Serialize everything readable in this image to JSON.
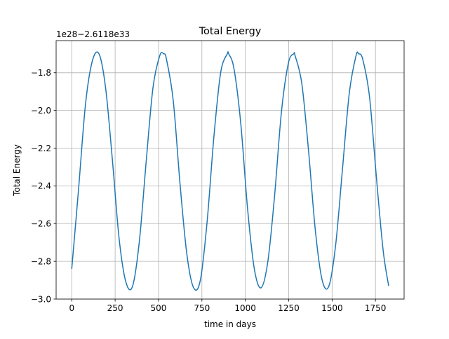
{
  "chart_data": {
    "type": "line",
    "title": "Total Energy",
    "xlabel": "time in days",
    "ylabel": "Total Energy",
    "offset_label": "1e28−2.6118e33",
    "xlim": [
      -90,
      1915
    ],
    "ylim": [
      -3.0,
      -1.63
    ],
    "xticks": [
      0,
      250,
      500,
      750,
      1000,
      1250,
      1500,
      1750
    ],
    "xtick_labels": [
      "0",
      "250",
      "500",
      "750",
      "1000",
      "1250",
      "1500",
      "1750"
    ],
    "yticks": [
      -3.0,
      -2.8,
      -2.6,
      -2.4,
      -2.2,
      -2.0,
      -1.8
    ],
    "ytick_labels": [
      "−3.0",
      "−2.8",
      "−2.6",
      "−2.4",
      "−2.2",
      "−2.0",
      "−1.8"
    ],
    "grid": true,
    "line_color": "#1f77b4",
    "series": [
      {
        "x": [
          0,
          39,
          79,
          118,
          157,
          195,
          234,
          273,
          312,
          351,
          390,
          429,
          468,
          507,
          530,
          546,
          585,
          624,
          663,
          702,
          741,
          780,
          819,
          858,
          896,
          904,
          935,
          974,
          1013,
          1052,
          1091,
          1130,
          1169,
          1208,
          1248,
          1279,
          1287,
          1326,
          1365,
          1404,
          1443,
          1482,
          1521,
          1560,
          1599,
          1638,
          1653,
          1677,
          1716,
          1755,
          1794,
          1826
        ],
        "y": [
          -2.84,
          -2.42,
          -1.97,
          -1.74,
          -1.7,
          -1.88,
          -2.26,
          -2.68,
          -2.91,
          -2.93,
          -2.69,
          -2.27,
          -1.88,
          -1.71,
          -1.7,
          -1.73,
          -1.95,
          -2.39,
          -2.76,
          -2.94,
          -2.9,
          -2.59,
          -2.14,
          -1.8,
          -1.7,
          -1.7,
          -1.78,
          -2.07,
          -2.52,
          -2.84,
          -2.94,
          -2.8,
          -2.45,
          -2.01,
          -1.75,
          -1.7,
          -1.71,
          -1.86,
          -2.22,
          -2.64,
          -2.9,
          -2.93,
          -2.71,
          -2.31,
          -1.91,
          -1.71,
          -1.7,
          -1.73,
          -1.93,
          -2.35,
          -2.74,
          -2.93
        ]
      }
    ]
  }
}
